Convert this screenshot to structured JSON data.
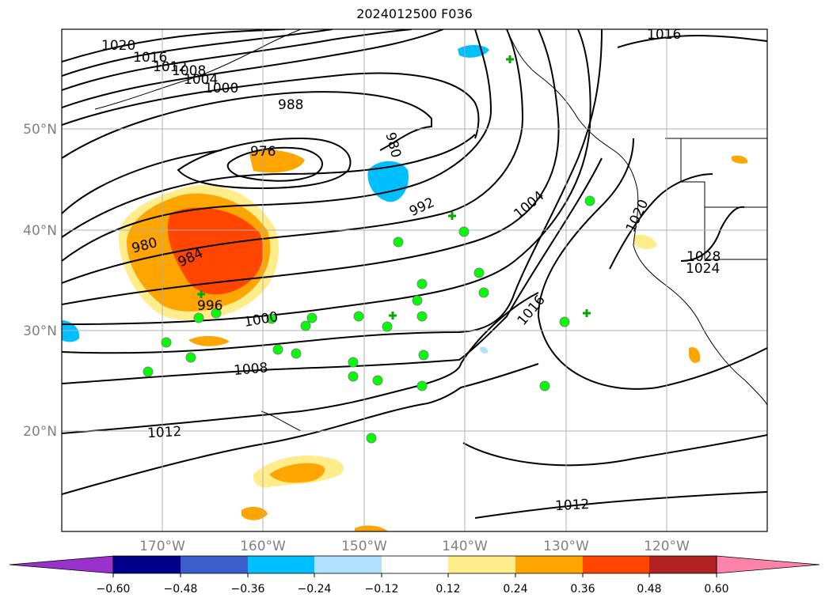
{
  "title": "2024012500 F036",
  "map": {
    "lon_range": [
      -180,
      -110
    ],
    "lat_range": [
      10,
      60
    ],
    "lat_labels": [
      "20°N",
      "30°N",
      "40°N",
      "50°N"
    ],
    "lon_labels": [
      "170°W",
      "160°W",
      "150°W",
      "140°W",
      "130°W",
      "120°W"
    ],
    "isobar_labels": [
      "1020",
      "1016",
      "1012",
      "1008",
      "1004",
      "1000",
      "988",
      "976",
      "980",
      "992",
      "1004",
      "1020",
      "980",
      "984",
      "996",
      "1000",
      "1016",
      "1008",
      "1012",
      "1012",
      "1028",
      "1024",
      "1016"
    ],
    "colors": {
      "neg_060": "#9932cc",
      "neg_048": "#00008b",
      "neg_036": "#3a5fcd",
      "neg_024": "#00bfff",
      "neg_012": "#b0e2ff",
      "zero": "#ffffff",
      "pos_012": "#ffec8b",
      "pos_024": "#ffa500",
      "pos_036": "#ff4500",
      "pos_048": "#b22222",
      "pos_060": "#ff82ab",
      "station": "#00ff00",
      "station_edge": "#808080"
    }
  },
  "colorbar": {
    "ticks": [
      "−0.60",
      "−0.48",
      "−0.36",
      "−0.24",
      "−0.12",
      "0.12",
      "0.24",
      "0.36",
      "0.48",
      "0.60"
    ]
  }
}
